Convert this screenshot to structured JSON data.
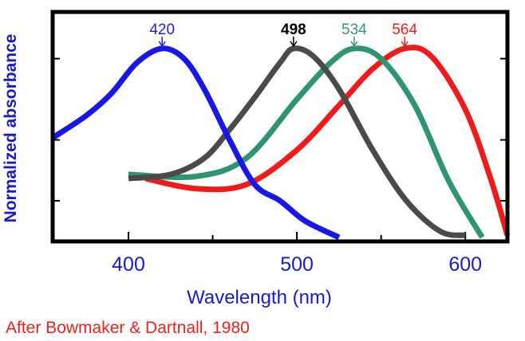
{
  "chart_data": {
    "type": "line",
    "title": "",
    "xlabel": "Wavelength (nm)",
    "ylabel": "Normalized absorbance",
    "xlim": [
      355,
      625
    ],
    "ylim": [
      0.05,
      1.18
    ],
    "x_ticks": [
      400,
      500,
      600
    ],
    "x_tick_labels": [
      "400",
      "500",
      "600"
    ],
    "grid": false,
    "legend": "none",
    "peak_labels": [
      {
        "text": "420",
        "x": 420,
        "color": "#1f1fe0"
      },
      {
        "text": "498",
        "x": 498,
        "color": "#000000"
      },
      {
        "text": "534",
        "x": 534,
        "color": "#3a9470"
      },
      {
        "text": "564",
        "x": 564,
        "color": "#e8221b"
      }
    ],
    "series": [
      {
        "color": "#1717e6",
        "x": [
          355,
          375,
          390,
          405,
          420,
          433,
          445,
          460,
          475,
          490,
          505,
          525
        ],
        "y": [
          0.56,
          0.67,
          0.78,
          0.93,
          1.0,
          0.95,
          0.8,
          0.55,
          0.33,
          0.25,
          0.15,
          0.07
        ]
      },
      {
        "color": "#4a4a4a",
        "x": [
          400,
          425,
          445,
          460,
          475,
          490,
          498,
          510,
          525,
          545,
          565,
          585,
          600
        ],
        "y": [
          0.36,
          0.38,
          0.46,
          0.6,
          0.76,
          0.93,
          1.0,
          0.96,
          0.8,
          0.5,
          0.25,
          0.1,
          0.08
        ]
      },
      {
        "color": "#2f9470",
        "x": [
          400,
          440,
          470,
          500,
          520,
          534,
          550,
          570,
          590,
          610
        ],
        "y": [
          0.38,
          0.37,
          0.46,
          0.75,
          0.93,
          1.0,
          0.95,
          0.72,
          0.35,
          0.07
        ]
      },
      {
        "color": "#ef1b1b",
        "x": [
          410,
          440,
          470,
          500,
          525,
          545,
          564,
          580,
          600,
          615,
          625
        ],
        "y": [
          0.36,
          0.31,
          0.33,
          0.5,
          0.72,
          0.9,
          1.0,
          0.96,
          0.7,
          0.36,
          0.08
        ]
      }
    ]
  },
  "credit": "After  Bowmaker & Dartnall, 1980"
}
